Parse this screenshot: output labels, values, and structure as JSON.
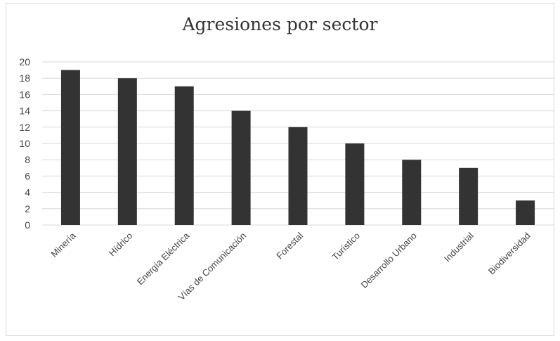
{
  "chart_data": {
    "type": "bar",
    "title": "Agresiones por sector",
    "categories": [
      "Minería",
      "Hídrico",
      "Energía Eléctrica",
      "Vías de Comunicación",
      "Forestal",
      "Turístico",
      "Desarrollo Urbano",
      "Industrial",
      "Biodiversidad"
    ],
    "values": [
      19,
      18,
      17,
      14,
      12,
      10,
      8,
      7,
      3
    ],
    "ylim": [
      0,
      20
    ],
    "yticks": [
      0,
      2,
      4,
      6,
      8,
      10,
      12,
      14,
      16,
      18,
      20
    ],
    "grid": true,
    "legend": "none",
    "bar_color": "#333333",
    "grid_color": "#d9d9d9"
  }
}
